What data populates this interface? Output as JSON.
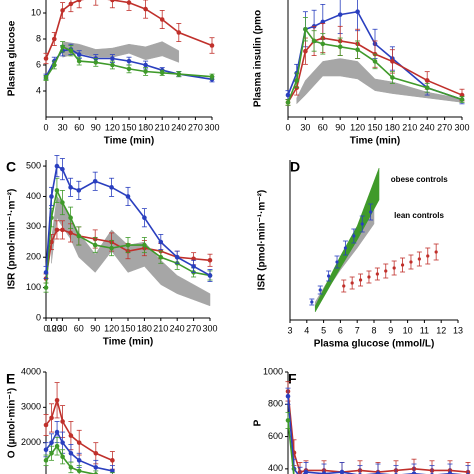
{
  "chart_data": [
    {
      "type": "line",
      "label": null,
      "ylabel": "Plasma glucose",
      "xlabel": "Time (min)",
      "xlim": [
        0,
        300
      ],
      "xticks": [
        0,
        30,
        60,
        90,
        120,
        150,
        180,
        210,
        240,
        270,
        300
      ],
      "ylim": [
        2,
        12
      ],
      "yticks": [
        4,
        6,
        8,
        10
      ],
      "x": [
        0,
        15,
        30,
        45,
        60,
        90,
        120,
        150,
        180,
        210,
        240,
        300
      ],
      "bands": [
        {
          "color": "#a6a6a6",
          "x": [
            30,
            60,
            90,
            120,
            150,
            180,
            210,
            240
          ],
          "lower": [
            6.6,
            6.9,
            6.6,
            6.6,
            6.9,
            6.4,
            6.7,
            6.2
          ],
          "upper": [
            7.8,
            7.6,
            7.2,
            7.3,
            7.6,
            7.4,
            7.8,
            7.1
          ]
        }
      ],
      "series": [
        {
          "color": "#c0302b",
          "values": [
            6.5,
            8,
            10.2,
            10.7,
            11,
            11.2,
            11,
            10.8,
            10.3,
            9.5,
            8.5,
            7.5
          ],
          "errors": [
            0.4,
            0.5,
            0.6,
            0.6,
            0.6,
            0.6,
            0.6,
            0.6,
            0.7,
            0.7,
            0.7,
            0.6
          ]
        },
        {
          "color": "#2a3fbf",
          "values": [
            5.1,
            6.3,
            7.1,
            7.2,
            6.8,
            6.5,
            6.5,
            6.3,
            6,
            5.6,
            5.3,
            4.9
          ],
          "errors": [
            0.2,
            0.3,
            0.4,
            0.4,
            0.3,
            0.3,
            0.3,
            0.3,
            0.3,
            0.2,
            0.2,
            0.2
          ]
        },
        {
          "color": "#3f9a2a",
          "values": [
            5,
            6,
            7.4,
            7.1,
            6.3,
            6.2,
            6,
            5.7,
            5.5,
            5.4,
            5.3,
            5.1
          ],
          "errors": [
            0.2,
            0.3,
            0.4,
            0.4,
            0.3,
            0.3,
            0.3,
            0.3,
            0.3,
            0.2,
            0.2,
            0.2
          ]
        }
      ]
    },
    {
      "type": "line",
      "label": null,
      "ylabel": "Plasma insulin (pmo",
      "xlabel": "Time (min)",
      "xlim": [
        0,
        300
      ],
      "xticks": [
        0,
        30,
        60,
        90,
        120,
        150,
        180,
        210,
        240,
        270,
        300
      ],
      "ylim": [
        0,
        800
      ],
      "x": [
        0,
        15,
        30,
        45,
        60,
        90,
        120,
        150,
        180,
        240,
        300
      ],
      "bands": [
        {
          "color": "#a6a6a6",
          "x": [
            15,
            30,
            60,
            90,
            120,
            150,
            180,
            240,
            300
          ],
          "lower": [
            90,
            150,
            280,
            280,
            260,
            180,
            160,
            130,
            100
          ],
          "upper": [
            130,
            250,
            380,
            400,
            380,
            260,
            240,
            170,
            125
          ]
        }
      ],
      "series": [
        {
          "color": "#2a3fbf",
          "values": [
            150,
            300,
            600,
            620,
            650,
            700,
            720,
            500,
            400,
            200,
            120
          ],
          "errors": [
            30,
            60,
            120,
            110,
            120,
            130,
            130,
            100,
            80,
            50,
            30
          ]
        },
        {
          "color": "#c0302b",
          "values": [
            100,
            200,
            450,
            520,
            540,
            520,
            500,
            430,
            380,
            250,
            150
          ],
          "errors": [
            20,
            50,
            90,
            100,
            100,
            100,
            100,
            90,
            80,
            60,
            40
          ]
        },
        {
          "color": "#3f9a2a",
          "values": [
            100,
            250,
            600,
            520,
            500,
            480,
            460,
            380,
            270,
            200,
            120
          ],
          "errors": [
            20,
            50,
            80,
            70,
            70,
            60,
            60,
            50,
            40,
            30,
            20
          ]
        }
      ]
    },
    {
      "type": "line",
      "label": "C",
      "ylabel": "ISR (pmol·min⁻¹·m⁻²)",
      "xlabel": "Time (min)",
      "xlim": [
        0,
        300
      ],
      "xticks": [
        0,
        10,
        20,
        30,
        60,
        90,
        120,
        150,
        180,
        210,
        240,
        270,
        300
      ],
      "ylim": [
        0,
        520
      ],
      "yticks": [
        0,
        100,
        200,
        300,
        400,
        500
      ],
      "x": [
        0,
        10,
        20,
        30,
        45,
        60,
        90,
        120,
        150,
        180,
        210,
        240,
        270,
        300
      ],
      "bands": [
        {
          "color": "#a6a6a6",
          "x": [
            10,
            20,
            30,
            45,
            60,
            90,
            120,
            150,
            180,
            210,
            240,
            270,
            300
          ],
          "lower": [
            180,
            330,
            300,
            260,
            200,
            150,
            220,
            150,
            170,
            110,
            80,
            60,
            40
          ],
          "upper": [
            260,
            400,
            380,
            330,
            280,
            210,
            290,
            240,
            250,
            190,
            140,
            110,
            80
          ]
        }
      ],
      "series": [
        {
          "color": "#c0302b",
          "values": [
            130,
            250,
            290,
            290,
            280,
            270,
            260,
            250,
            220,
            230,
            220,
            200,
            195,
            190
          ],
          "errors": [
            15,
            25,
            30,
            30,
            30,
            30,
            30,
            30,
            25,
            25,
            25,
            20,
            20,
            20
          ]
        },
        {
          "color": "#3f9a2a",
          "values": [
            100,
            330,
            420,
            380,
            330,
            270,
            240,
            230,
            240,
            240,
            200,
            180,
            150,
            140
          ],
          "errors": [
            15,
            30,
            40,
            40,
            35,
            30,
            25,
            25,
            25,
            25,
            20,
            20,
            15,
            15
          ]
        },
        {
          "color": "#2a3fbf",
          "values": [
            150,
            400,
            500,
            490,
            430,
            420,
            450,
            430,
            400,
            330,
            250,
            200,
            170,
            140
          ],
          "errors": [
            20,
            30,
            35,
            35,
            30,
            30,
            30,
            30,
            30,
            30,
            25,
            20,
            20,
            20
          ]
        }
      ]
    },
    {
      "type": "scatter",
      "label": "D",
      "ylabel": "ISR (pmol·min⁻¹·m⁻²)",
      "xlabel": "Plasma glucose (mmol/L)",
      "xlim": [
        3,
        13
      ],
      "xticks": [
        3,
        4,
        5,
        6,
        7,
        8,
        9,
        10,
        11,
        12,
        13
      ],
      "ylim": [
        0,
        800
      ],
      "bands": [
        {
          "color": "#a6a6a6",
          "x": [
            4.5,
            6,
            7,
            8
          ],
          "lower": [
            60,
            250,
            360,
            480
          ],
          "upper": [
            90,
            300,
            430,
            560
          ]
        },
        {
          "color": "#3f9a2a",
          "x": [
            4.5,
            6,
            7,
            8.3
          ],
          "lower": [
            40,
            260,
            400,
            600
          ],
          "upper": [
            70,
            320,
            470,
            760
          ]
        }
      ],
      "series": [
        {
          "color": "#2a3fbf",
          "x": [
            4.3,
            4.8,
            5.3,
            5.8,
            6.3,
            6.8,
            7.3,
            7.8
          ],
          "values": [
            90,
            150,
            220,
            290,
            360,
            420,
            480,
            540
          ],
          "errors": [
            15,
            20,
            25,
            30,
            35,
            35,
            40,
            40
          ]
        },
        {
          "color": "#c0302b",
          "x": [
            6.2,
            6.7,
            7.2,
            7.7,
            8.2,
            8.7,
            9.2,
            9.7,
            10.2,
            10.7,
            11.2,
            11.7
          ],
          "values": [
            170,
            185,
            200,
            215,
            230,
            245,
            260,
            275,
            290,
            305,
            320,
            340
          ],
          "errors": [
            30,
            30,
            30,
            30,
            30,
            35,
            35,
            35,
            35,
            35,
            40,
            40
          ]
        }
      ],
      "annotations": [
        {
          "text": "obese controls",
          "x": 9,
          "y": 700
        },
        {
          "text": "lean controls",
          "x": 9.2,
          "y": 520
        }
      ]
    },
    {
      "type": "line",
      "label": "E",
      "ylabel": "O (µmol·min⁻¹)",
      "xlim": [
        0,
        300
      ],
      "ylim": [
        1000,
        4000
      ],
      "yticks": [
        2000,
        3000,
        4000
      ],
      "x": [
        0,
        10,
        20,
        30,
        45,
        60,
        90,
        120
      ],
      "series": [
        {
          "color": "#c0302b",
          "values": [
            2500,
            2700,
            3200,
            2600,
            2200,
            2000,
            1700,
            1500
          ],
          "errors": [
            300,
            400,
            500,
            450,
            400,
            350,
            300,
            250
          ]
        },
        {
          "color": "#2a3fbf",
          "values": [
            1800,
            2000,
            2300,
            2000,
            1700,
            1500,
            1300,
            1200
          ],
          "errors": [
            200,
            250,
            300,
            300,
            250,
            200,
            200,
            150
          ]
        },
        {
          "color": "#3f9a2a",
          "values": [
            1500,
            1700,
            1900,
            1600,
            1300,
            1200,
            1100,
            1050
          ],
          "errors": [
            150,
            200,
            250,
            200,
            150,
            150,
            100,
            100
          ]
        }
      ]
    },
    {
      "type": "line",
      "label": "F",
      "ylabel": "P",
      "xlim": [
        0,
        300
      ],
      "ylim": [
        300,
        1000
      ],
      "yticks": [
        400,
        600,
        800,
        1000
      ],
      "x": [
        0,
        10,
        20,
        30,
        60,
        90,
        120,
        150,
        180,
        210,
        240,
        270,
        300
      ],
      "series": [
        {
          "color": "#c0302b",
          "values": [
            880,
            500,
            380,
            390,
            390,
            380,
            390,
            380,
            390,
            400,
            390,
            390,
            380
          ],
          "errors": [
            60,
            80,
            60,
            60,
            60,
            60,
            60,
            60,
            60,
            60,
            60,
            60,
            60
          ]
        },
        {
          "color": "#2a3fbf",
          "values": [
            850,
            400,
            350,
            380,
            370,
            380,
            360,
            370,
            360,
            370,
            360,
            370,
            360
          ],
          "errors": [
            50,
            60,
            60,
            60,
            60,
            60,
            60,
            60,
            60,
            60,
            60,
            60,
            60
          ]
        },
        {
          "color": "#3f9a2a",
          "values": [
            700,
            350,
            300,
            320,
            310,
            320,
            310,
            320,
            310,
            320,
            310,
            320,
            310
          ],
          "errors": [
            50,
            50,
            40,
            40,
            40,
            40,
            40,
            40,
            40,
            40,
            40,
            40,
            40
          ]
        }
      ]
    }
  ]
}
